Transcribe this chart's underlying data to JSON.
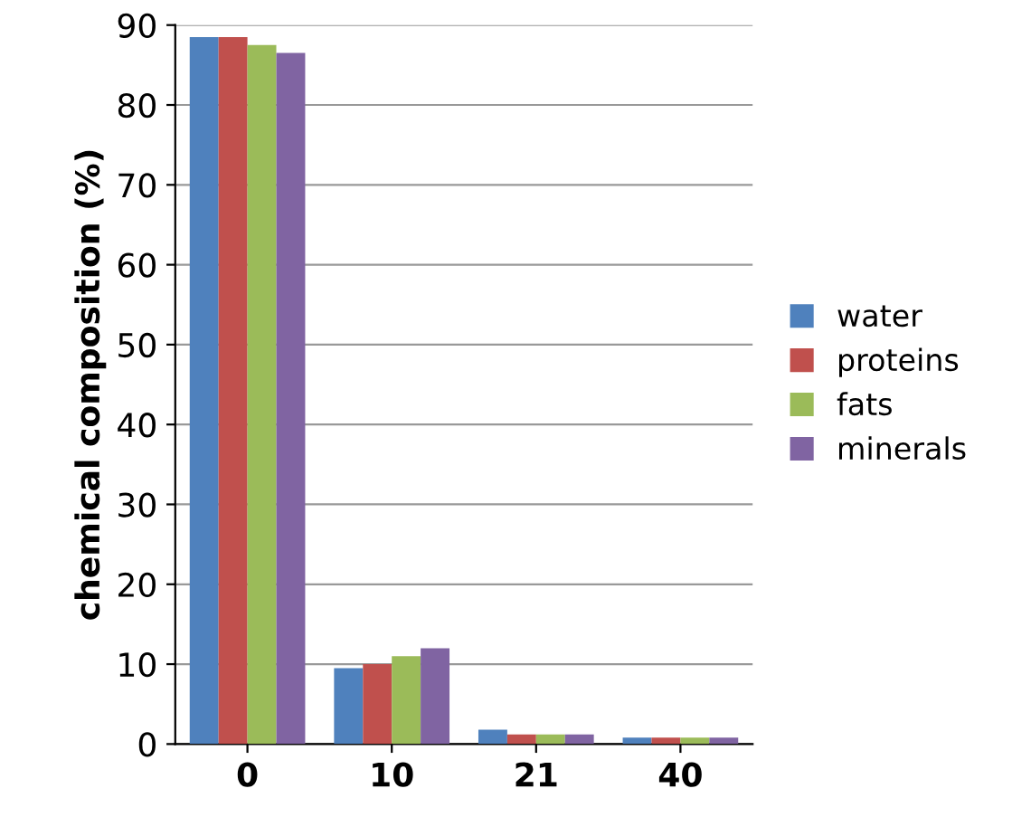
{
  "chart_data": {
    "type": "bar",
    "ylabel": "chemical composition (%)",
    "categories": [
      "0",
      "10",
      "21",
      "40"
    ],
    "series": [
      {
        "name": "water",
        "color": "#4f81bd",
        "values": [
          88.5,
          9.5,
          1.8,
          0.8
        ]
      },
      {
        "name": "proteins",
        "color": "#c0504d",
        "values": [
          88.5,
          10,
          1.2,
          0.8
        ]
      },
      {
        "name": "fats",
        "color": "#9bbb59",
        "values": [
          87.5,
          11,
          1.2,
          0.8
        ]
      },
      {
        "name": "minerals",
        "color": "#8064a2",
        "values": [
          86.5,
          12,
          1.2,
          0.8
        ]
      }
    ],
    "ylim": [
      0,
      90
    ],
    "yticks": [
      0,
      10,
      20,
      30,
      40,
      50,
      60,
      70,
      80,
      90
    ],
    "grid": "y",
    "legend": "right"
  }
}
